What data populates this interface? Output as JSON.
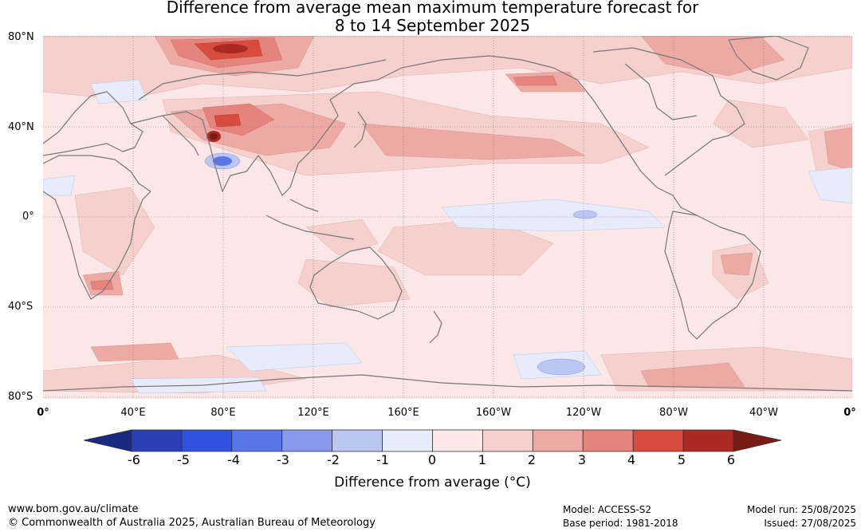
{
  "title": {
    "line1": "Difference from average mean maximum temperature forecast for",
    "line2": "8 to 14 September 2025"
  },
  "lat_labels": [
    "80°N",
    "40°N",
    "0°",
    "40°S",
    "80°S"
  ],
  "lon_labels": [
    "0°",
    "40°E",
    "80°E",
    "120°E",
    "160°E",
    "160°W",
    "120°W",
    "80°W",
    "40°W",
    "0°"
  ],
  "colorbar": {
    "ticks": [
      "-6",
      "-5",
      "-4",
      "-3",
      "-2",
      "-1",
      "0",
      "1",
      "2",
      "3",
      "4",
      "5",
      "6"
    ],
    "colors": [
      "#1a2a80",
      "#2a40b4",
      "#3050e0",
      "#5a76e6",
      "#8898ea",
      "#bcc6f2",
      "#e6ecfa",
      "#fbe8e6",
      "#f5d0cc",
      "#edaaa4",
      "#e5847c",
      "#d84c40",
      "#aa2a22",
      "#7a1c16"
    ],
    "label": "Difference from average (°C)"
  },
  "footer": {
    "url": "www.bom.gov.au/climate",
    "copyright": "© Commonwealth of Australia 2025, Australian Bureau of Meteorology",
    "model": "Model: ACCESS-S2",
    "base_period": "Base period: 1981-2018",
    "model_run": "Model run: 25/08/2025",
    "issued": "Issued: 27/08/2025"
  }
}
